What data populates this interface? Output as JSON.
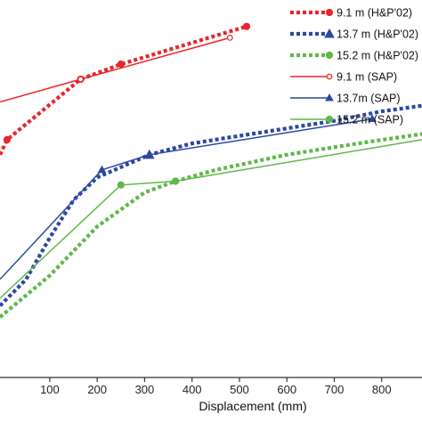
{
  "chart_data": {
    "type": "line",
    "title": "",
    "xlabel": "Displacement (mm)",
    "ylabel": "",
    "xlim": [
      -5,
      885
    ],
    "ylim": [
      0,
      100
    ],
    "x_ticks": [
      100,
      200,
      300,
      400,
      500,
      600,
      700,
      800
    ],
    "grid": false,
    "legend": "top-right",
    "series": [
      {
        "name": "9.1 m (H&P'02)",
        "color": "#e8262b",
        "style": "dotted",
        "marker": "filled-circle",
        "points": [
          [
            -5,
            59
          ],
          [
            10,
            63
          ],
          [
            165,
            79
          ],
          [
            250,
            83
          ],
          [
            515,
            93
          ]
        ]
      },
      {
        "name": "13.7 m (H&P'02)",
        "color": "#2c48a0",
        "style": "dotted",
        "marker": "filled-triangle",
        "points": [
          [
            -5,
            19
          ],
          [
            50,
            26
          ],
          [
            100,
            37
          ],
          [
            150,
            47
          ],
          [
            200,
            53
          ],
          [
            310,
            59
          ],
          [
            400,
            62
          ],
          [
            500,
            64
          ],
          [
            600,
            66
          ],
          [
            700,
            68
          ],
          [
            800,
            70.5
          ],
          [
            885,
            72
          ]
        ]
      },
      {
        "name": "15.2 m (H&P'02)",
        "color": "#5fb84a",
        "style": "dotted",
        "marker": "filled-circle",
        "points": [
          [
            -5,
            16
          ],
          [
            100,
            27
          ],
          [
            200,
            40
          ],
          [
            300,
            49
          ],
          [
            365,
            52
          ],
          [
            450,
            55
          ],
          [
            600,
            59
          ],
          [
            750,
            62
          ],
          [
            885,
            64.5
          ]
        ]
      },
      {
        "name": "9.1 m (SAP)",
        "color": "#e8262b",
        "style": "solid",
        "marker": "open-circle",
        "points": [
          [
            -5,
            73
          ],
          [
            165,
            79
          ],
          [
            480,
            90
          ]
        ]
      },
      {
        "name": "13.7m (SAP)",
        "color": "#2c48a0",
        "style": "solid",
        "marker": "open-triangle",
        "points": [
          [
            -5,
            26
          ],
          [
            210,
            55
          ],
          [
            310,
            59
          ],
          [
            780,
            68.5
          ]
        ]
      },
      {
        "name": "15.2 m (SAP)",
        "color": "#5fb84a",
        "style": "solid",
        "marker": "filled-circle",
        "points": [
          [
            -5,
            21
          ],
          [
            250,
            51
          ],
          [
            365,
            52
          ],
          [
            885,
            63
          ]
        ]
      }
    ]
  }
}
